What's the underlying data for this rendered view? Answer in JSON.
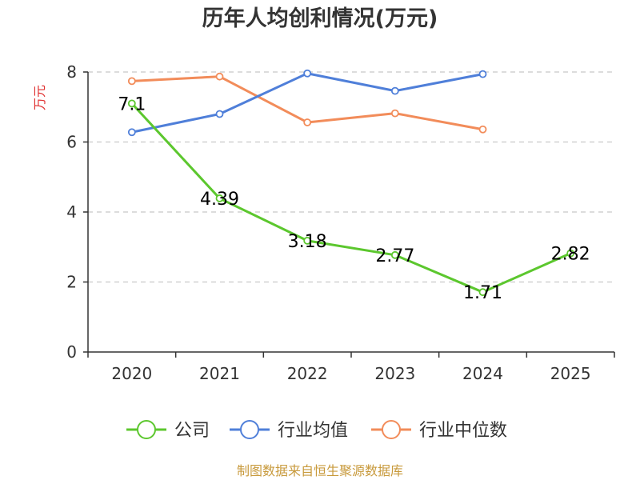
{
  "chart_data": {
    "type": "line",
    "title": "历年人均创利情况(万元)",
    "ylabel": "万元",
    "xlabel": "",
    "categories": [
      "2020",
      "2021",
      "2022",
      "2023",
      "2024",
      "2025"
    ],
    "ylim": [
      0,
      8
    ],
    "yticks": [
      0,
      2,
      4,
      6,
      8
    ],
    "grid": true,
    "legend_position": "bottom",
    "series": [
      {
        "name": "公司",
        "color": "#5cc72e",
        "values": [
          7.1,
          4.39,
          3.18,
          2.77,
          1.71,
          2.82
        ],
        "labels": [
          "7.1",
          "4.39",
          "3.18",
          "2.77",
          "1.71",
          "2.82"
        ]
      },
      {
        "name": "行业均值",
        "color": "#4f7fd9",
        "values": [
          6.28,
          6.8,
          7.96,
          7.46,
          7.94,
          null
        ]
      },
      {
        "name": "行业中位数",
        "color": "#f28c5a",
        "values": [
          7.74,
          7.87,
          6.56,
          6.82,
          6.36,
          null
        ]
      }
    ]
  },
  "footer": {
    "source": "制图数据来自恒生聚源数据库"
  }
}
